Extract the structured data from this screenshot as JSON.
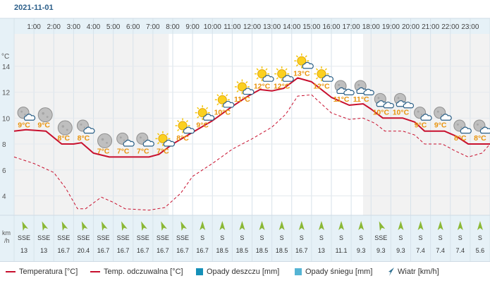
{
  "date": "2021-11-01",
  "colors": {
    "temperature": "#c8102e",
    "feels_like": "#c8102e",
    "rain": "#1590b8",
    "snow": "#55b4d4",
    "wind": "#2c6e8f",
    "arrow": "#8bb835",
    "label": "#e8930c",
    "grid_bg": "#f2f2f2",
    "band": "#e6f1f7",
    "line_grid": "#d7e2ea"
  },
  "legend": {
    "temperature": "Temperatura [°C]",
    "feels_like": "Temp. odczuwalna [°C]",
    "rain": "Opady deszczu [mm]",
    "snow": "Opady śniegu [mm]",
    "wind": "Wiatr [km/h]"
  },
  "chart_data": {
    "type": "line",
    "x": [
      "1:00",
      "2:00",
      "3:00",
      "4:00",
      "5:00",
      "6:00",
      "7:00",
      "8:00",
      "9:00",
      "10:00",
      "11:00",
      "12:00",
      "13:00",
      "14:00",
      "15:00",
      "16:00",
      "17:00",
      "18:00",
      "19:00",
      "20:00",
      "21:00",
      "22:00",
      "23:00"
    ],
    "ylabel": "°C",
    "yticks": [
      4,
      6,
      8,
      10,
      12,
      14
    ],
    "ylim": [
      2.5,
      16.5
    ],
    "temp_labels": [
      "9°C",
      "9°C",
      "8°C",
      "8°C",
      "7°C",
      "7°C",
      "7°C",
      "7°C",
      "8°C",
      "9°C",
      "10°C",
      "11°C",
      "12°C",
      "12°C",
      "13°C",
      "12°C",
      "11°C",
      "11°C",
      "10°C",
      "10°C",
      "9°C",
      "9°C",
      "8°C",
      "8°C"
    ],
    "label_values": [
      9,
      9,
      8,
      8,
      7,
      7,
      7,
      7,
      8,
      9,
      10,
      11,
      12,
      12,
      13,
      12,
      11,
      11,
      10,
      10,
      9,
      9,
      8,
      8
    ],
    "icons": [
      "moon-cloud",
      "moon",
      "moon",
      "moon-cloud",
      "moon",
      "moon-cloud",
      "moon-cloud",
      "sun-cloud",
      "sun-cloud",
      "sun-cloud",
      "sun-cloud",
      "sun-cloud",
      "sun-cloud",
      "sun-cloud",
      "sun-cloud",
      "sun-cloud",
      "moon-cloud-double",
      "moon-cloud-double",
      "moon-cloud-double",
      "moon-cloud-double",
      "moon-cloud",
      "moon-cloud",
      "moon-cloud",
      "moon-cloud"
    ],
    "series": [
      {
        "name": "Temperatura [°C]",
        "style": "solid",
        "points": [
          [
            0,
            9.0
          ],
          [
            0.6,
            9.1
          ],
          [
            1.6,
            9.0
          ],
          [
            2.4,
            8.0
          ],
          [
            3.0,
            8.0
          ],
          [
            3.4,
            8.1
          ],
          [
            4.0,
            7.3
          ],
          [
            4.8,
            7.0
          ],
          [
            6.0,
            7.0
          ],
          [
            6.8,
            7.0
          ],
          [
            7.3,
            7.2
          ],
          [
            8.0,
            8.0
          ],
          [
            9.0,
            8.9
          ],
          [
            10.0,
            9.8
          ],
          [
            11.0,
            10.9
          ],
          [
            11.8,
            11.7
          ],
          [
            12.4,
            12.2
          ],
          [
            13.0,
            12.1
          ],
          [
            13.6,
            12.3
          ],
          [
            14.3,
            13.1
          ],
          [
            15.0,
            12.8
          ],
          [
            16.0,
            11.6
          ],
          [
            16.9,
            11.0
          ],
          [
            17.6,
            11.1
          ],
          [
            18.0,
            10.7
          ],
          [
            18.6,
            10.0
          ],
          [
            19.6,
            10.0
          ],
          [
            20.2,
            9.7
          ],
          [
            20.7,
            9.0
          ],
          [
            21.7,
            9.0
          ],
          [
            22.3,
            8.6
          ],
          [
            22.9,
            8.0
          ],
          [
            23.8,
            8.0
          ],
          [
            24.0,
            8.0
          ]
        ]
      },
      {
        "name": "Temp. odczuwalna [°C]",
        "style": "dashed",
        "points": [
          [
            0,
            7.0
          ],
          [
            1.0,
            6.5
          ],
          [
            2.0,
            5.8
          ],
          [
            2.6,
            4.6
          ],
          [
            3.2,
            3.0
          ],
          [
            3.6,
            3.0
          ],
          [
            4.4,
            3.9
          ],
          [
            5.0,
            3.5
          ],
          [
            5.6,
            3.0
          ],
          [
            6.8,
            2.9
          ],
          [
            7.6,
            3.1
          ],
          [
            8.4,
            4.2
          ],
          [
            9.0,
            5.5
          ],
          [
            10.0,
            6.5
          ],
          [
            11.0,
            7.6
          ],
          [
            12.0,
            8.4
          ],
          [
            13.0,
            9.3
          ],
          [
            13.7,
            10.3
          ],
          [
            14.3,
            11.7
          ],
          [
            15.0,
            11.8
          ],
          [
            16.0,
            10.4
          ],
          [
            16.9,
            9.9
          ],
          [
            17.6,
            10.0
          ],
          [
            18.2,
            9.6
          ],
          [
            18.7,
            9.0
          ],
          [
            19.6,
            9.0
          ],
          [
            20.2,
            8.7
          ],
          [
            20.7,
            8.0
          ],
          [
            21.6,
            8.0
          ],
          [
            22.2,
            7.5
          ],
          [
            22.9,
            7.0
          ],
          [
            23.6,
            7.3
          ],
          [
            24.0,
            8.0
          ]
        ]
      }
    ],
    "wind_dirs": [
      "SSE",
      "SSE",
      "SSE",
      "SSE",
      "SSE",
      "SSE",
      "SSE",
      "SSE",
      "SSE",
      "S",
      "S",
      "S",
      "S",
      "S",
      "S",
      "S",
      "S",
      "S",
      "SSE",
      "S",
      "S",
      "S",
      "S",
      "S"
    ],
    "wind_speeds": [
      "13",
      "13",
      "16.7",
      "20.4",
      "16.7",
      "16.7",
      "16.7",
      "16.7",
      "16.7",
      "16.7",
      "18.5",
      "18.5",
      "18.5",
      "18.5",
      "16.7",
      "13",
      "11.1",
      "9.3",
      "9.3",
      "9.3",
      "7.4",
      "7.4",
      "7.4",
      "5.6"
    ],
    "wind_unit_top": "km",
    "wind_unit_bottom": "/h"
  }
}
